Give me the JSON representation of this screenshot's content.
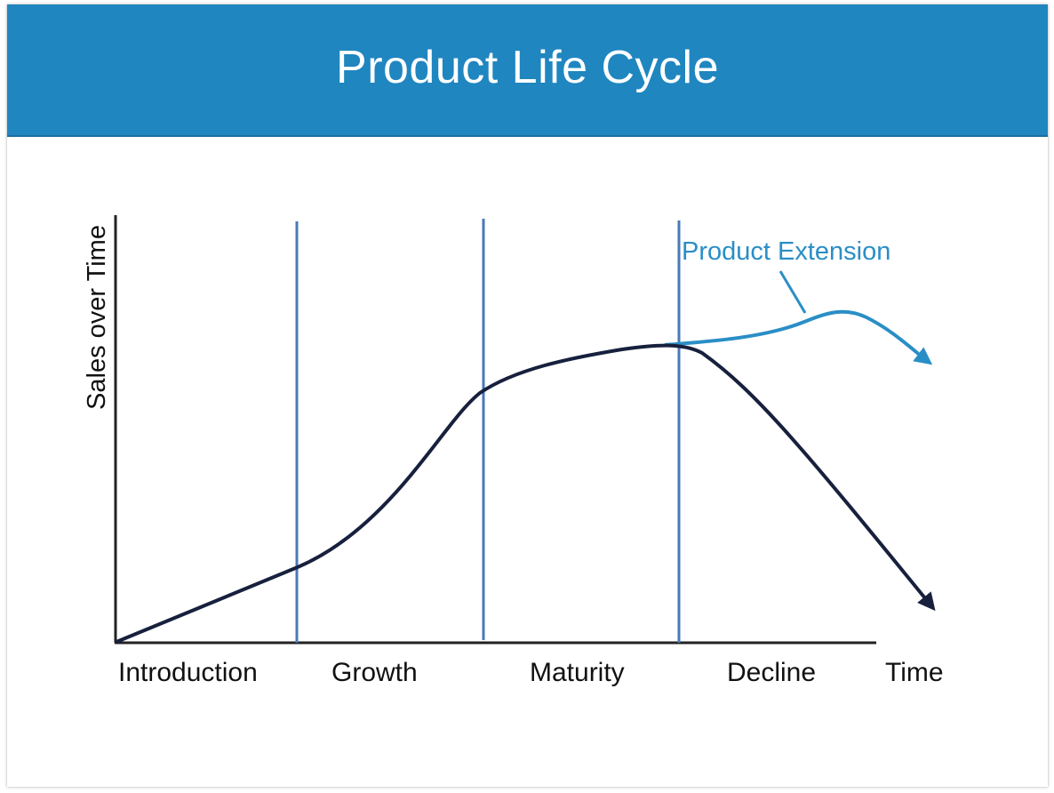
{
  "title": "Product Life Cycle",
  "y_axis_label": "Sales over Time",
  "x_axis_label": "Time",
  "stages": [
    "Introduction",
    "Growth",
    "Maturity",
    "Decline"
  ],
  "extension_label": "Product Extension",
  "colors": {
    "header": "#1f86c0",
    "main_curve": "#17203d",
    "extension_curve": "#2a8ec6",
    "stage_divider": "#4a78b8",
    "axis": "#222222"
  }
}
